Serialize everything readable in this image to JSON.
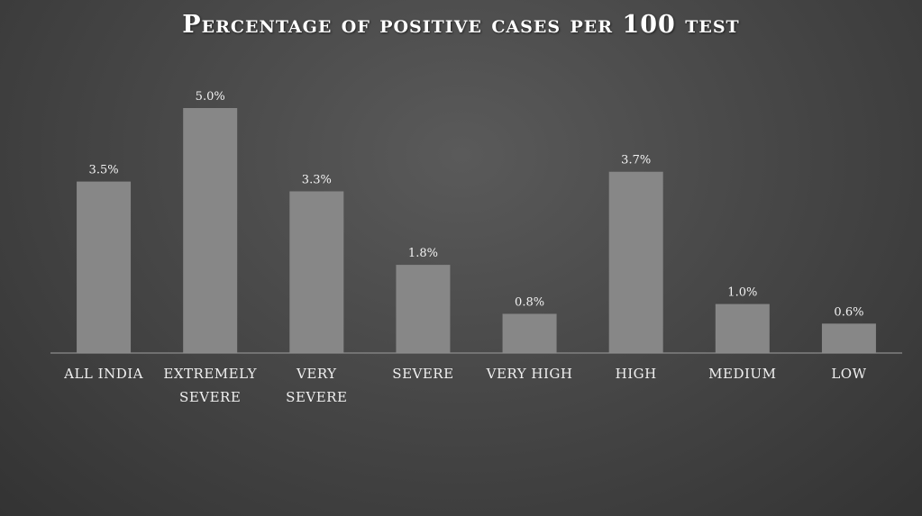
{
  "chart_data": {
    "type": "bar",
    "title": "Percentage of positive cases per 100 test",
    "xlabel": "",
    "ylabel": "",
    "categories": [
      [
        "ALL INDIA"
      ],
      [
        "EXTREMELY",
        "SEVERE"
      ],
      [
        "VERY",
        "SEVERE"
      ],
      [
        "SEVERE"
      ],
      [
        "VERY HIGH"
      ],
      [
        "HIGH"
      ],
      [
        "MEDIUM"
      ],
      [
        "LOW"
      ]
    ],
    "values": [
      3.5,
      5.0,
      3.3,
      1.8,
      0.8,
      3.7,
      1.0,
      0.6
    ],
    "data_labels": [
      "3.5%",
      "5.0%",
      "3.3%",
      "1.8%",
      "0.8%",
      "3.7%",
      "1.0%",
      "0.6%"
    ],
    "ylim": [
      0,
      5.0
    ],
    "grid": false,
    "legend": "none",
    "colors": {
      "bar": "#878787",
      "background": "#4a4a4a",
      "text": "#ffffff"
    }
  }
}
